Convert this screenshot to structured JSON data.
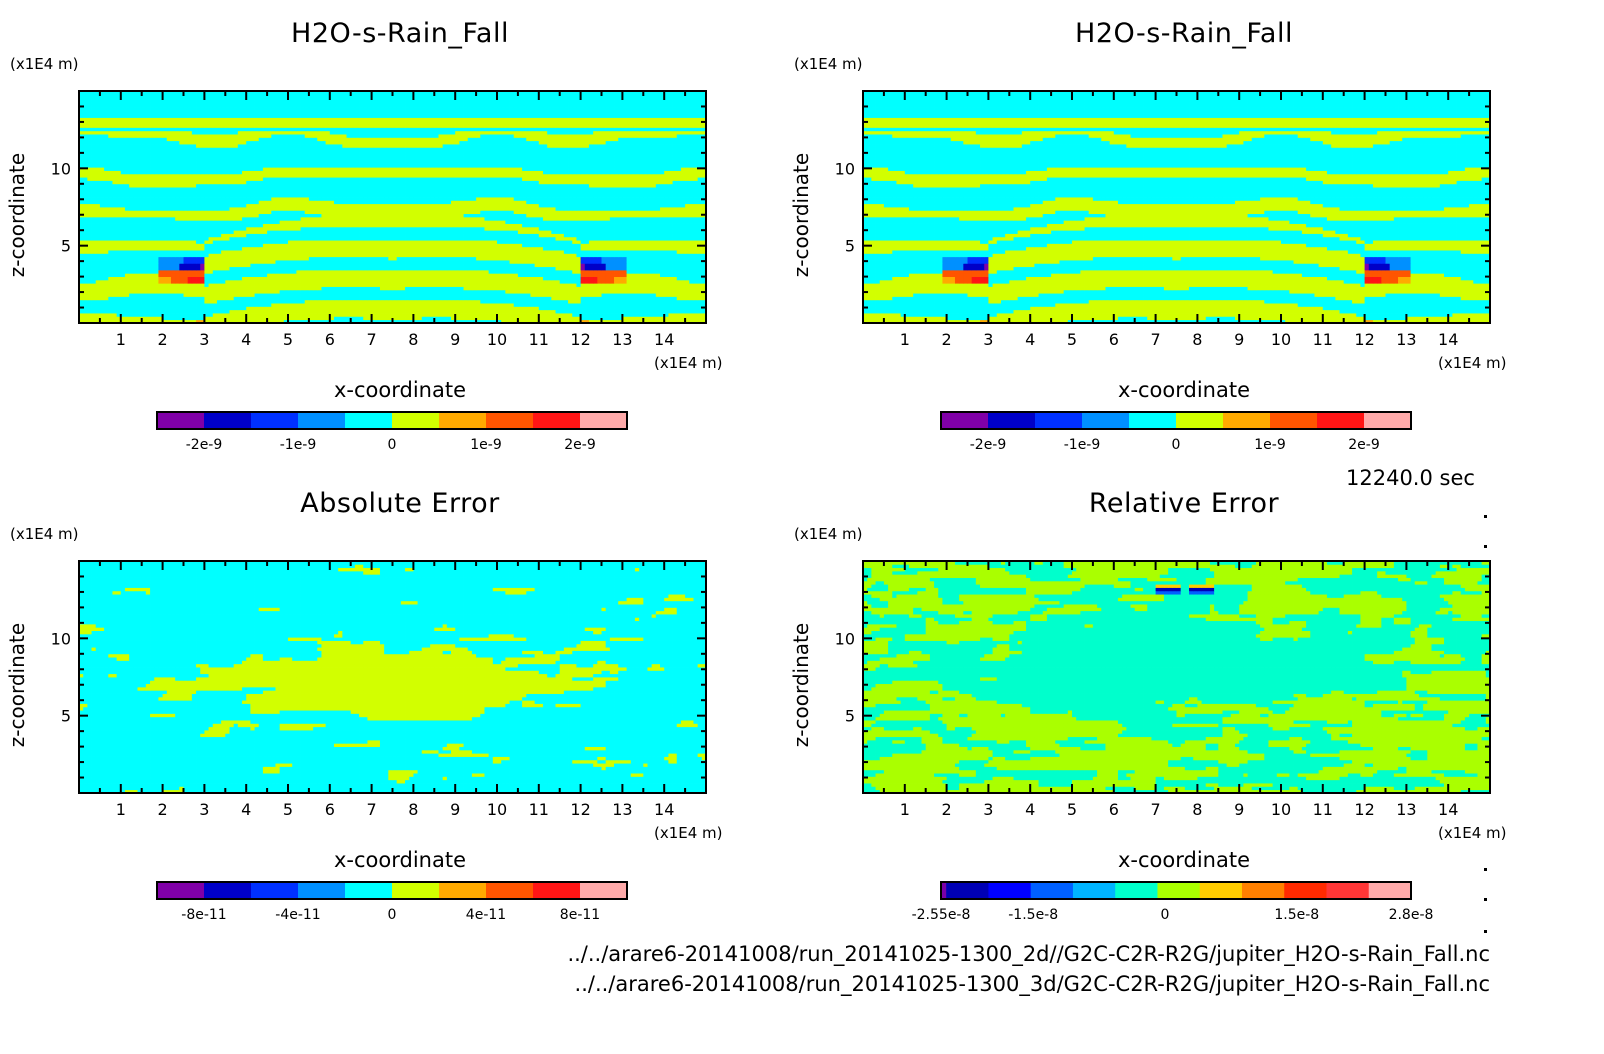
{
  "figure": {
    "time_label": "12240.0 sec",
    "files": [
      "../../arare6-20141008/run_20141025-1300_2d//G2C-C2R-R2G/jupiter_H2O-s-Rain_Fall.nc",
      "../../arare6-20141008/run_20141025-1300_3d/G2C-C2R-R2G/jupiter_H2O-s-Rain_Fall.nc"
    ]
  },
  "chart_data": [
    {
      "type": "heatmap",
      "title": "H2O-s-Rain_Fall",
      "xlabel": "x-coordinate",
      "ylabel": "z-coordinate",
      "x_unit": "(x1E4 m)",
      "z_unit": "(x1E4 m)",
      "xlim": [
        0,
        15
      ],
      "ylim": [
        0,
        15
      ],
      "x_ticks": [
        "1",
        "2",
        "3",
        "4",
        "5",
        "6",
        "7",
        "8",
        "9",
        "10",
        "11",
        "12",
        "13",
        "14"
      ],
      "y_ticks": [
        "5",
        "10"
      ],
      "colorbar": {
        "colors": [
          "#8000a8",
          "#0000c8",
          "#0030ff",
          "#0090ff",
          "#00ffff",
          "#d2ff00",
          "#ffaa00",
          "#ff5500",
          "#ff1515",
          "#ffaaaa"
        ],
        "tick_labels": [
          "-2e-9",
          "-1e-9",
          "0",
          "1e-9",
          "2e-9"
        ],
        "range": [
          -2.5e-09,
          2.5e-09
        ]
      },
      "palette": "base"
    },
    {
      "type": "heatmap",
      "title": "H2O-s-Rain_Fall",
      "xlabel": "x-coordinate",
      "ylabel": "z-coordinate",
      "x_unit": "(x1E4 m)",
      "z_unit": "(x1E4 m)",
      "xlim": [
        0,
        15
      ],
      "ylim": [
        0,
        15
      ],
      "x_ticks": [
        "1",
        "2",
        "3",
        "4",
        "5",
        "6",
        "7",
        "8",
        "9",
        "10",
        "11",
        "12",
        "13",
        "14"
      ],
      "y_ticks": [
        "5",
        "10"
      ],
      "colorbar": {
        "colors": [
          "#8000a8",
          "#0000c8",
          "#0030ff",
          "#0090ff",
          "#00ffff",
          "#d2ff00",
          "#ffaa00",
          "#ff5500",
          "#ff1515",
          "#ffaaaa"
        ],
        "tick_labels": [
          "-2e-9",
          "-1e-9",
          "0",
          "1e-9",
          "2e-9"
        ],
        "range": [
          -2.5e-09,
          2.5e-09
        ]
      },
      "palette": "base"
    },
    {
      "type": "heatmap",
      "title": "Absolute Error",
      "xlabel": "x-coordinate",
      "ylabel": "z-coordinate",
      "x_unit": "(x1E4 m)",
      "z_unit": "(x1E4 m)",
      "xlim": [
        0,
        15
      ],
      "ylim": [
        0,
        15
      ],
      "x_ticks": [
        "1",
        "2",
        "3",
        "4",
        "5",
        "6",
        "7",
        "8",
        "9",
        "10",
        "11",
        "12",
        "13",
        "14"
      ],
      "y_ticks": [
        "5",
        "10"
      ],
      "colorbar": {
        "colors": [
          "#8000a8",
          "#0000c8",
          "#0030ff",
          "#0090ff",
          "#00ffff",
          "#d2ff00",
          "#ffaa00",
          "#ff5500",
          "#ff1515",
          "#ffaaaa"
        ],
        "tick_labels": [
          "-8e-11",
          "-4e-11",
          "0",
          "4e-11",
          "8e-11"
        ],
        "range": [
          -1e-10,
          1e-10
        ]
      },
      "palette": "abs"
    },
    {
      "type": "heatmap",
      "title": "Relative Error",
      "xlabel": "x-coordinate",
      "ylabel": "z-coordinate",
      "x_unit": "(x1E4 m)",
      "z_unit": "(x1E4 m)",
      "xlim": [
        0,
        15
      ],
      "ylim": [
        0,
        15
      ],
      "x_ticks": [
        "1",
        "2",
        "3",
        "4",
        "5",
        "6",
        "7",
        "8",
        "9",
        "10",
        "11",
        "12",
        "13",
        "14"
      ],
      "y_ticks": [
        "5",
        "10"
      ],
      "colorbar": {
        "colors": [
          "#7a00a8",
          "#0000b4",
          "#0000ff",
          "#0060ff",
          "#00b4ff",
          "#00ffcc",
          "#aaff00",
          "#ffcc00",
          "#ff8000",
          "#ff2a00",
          "#ff3636",
          "#ffaaaa"
        ],
        "tick_labels": [
          "-2.55e-8",
          "-1.5e-8",
          "0",
          "1.5e-8",
          "2.8e-8"
        ],
        "range": [
          -2.55e-08,
          2.8e-08
        ]
      },
      "palette": "rel"
    }
  ]
}
